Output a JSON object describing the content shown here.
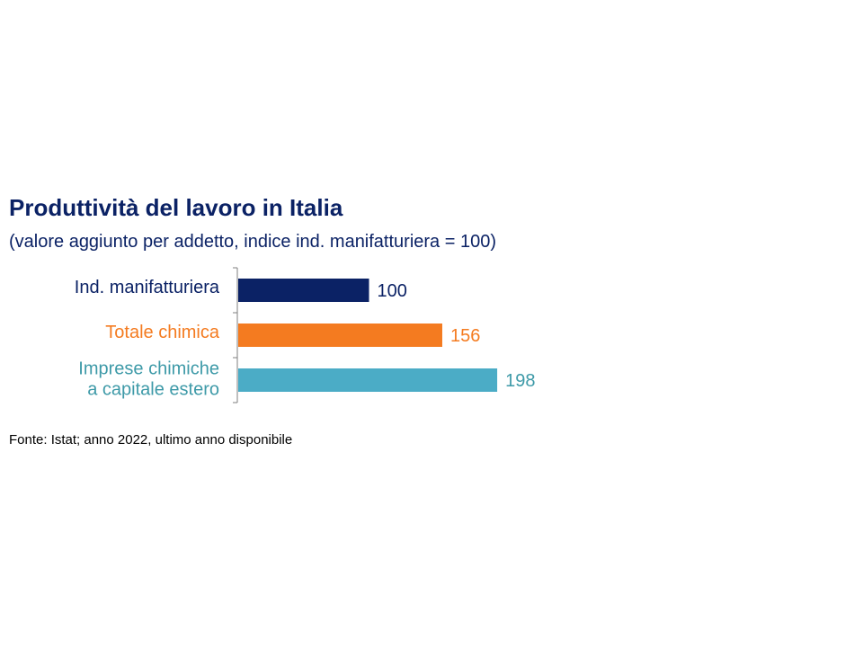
{
  "header": {
    "title": "Produttività del lavoro in Italia",
    "subtitle": "(valore aggiunto per addetto, indice ind. manifatturiera = 100)"
  },
  "source": "Fonte: Istat; anno 2022, ultimo anno disponibile",
  "chart_data": {
    "type": "bar",
    "orientation": "horizontal",
    "title": "Produttività del lavoro in Italia",
    "subtitle": "(valore aggiunto per addetto, indice ind. manifatturiera = 100)",
    "xlabel": "",
    "ylabel": "",
    "xlim": [
      0,
      250
    ],
    "grid": false,
    "categories": [
      {
        "lines": [
          "Ind. manifatturiera"
        ],
        "color": "#0b2265"
      },
      {
        "lines": [
          "Totale chimica"
        ],
        "color": "#f47b20"
      },
      {
        "lines": [
          "Imprese chimiche",
          "a capitale estero"
        ],
        "color": "#3e9aa8"
      }
    ],
    "values": [
      100,
      156,
      198
    ],
    "value_labels": [
      "100",
      "156",
      "198"
    ],
    "bar_colors": [
      "#0b2265",
      "#f47b20",
      "#4bacc6"
    ],
    "value_label_colors": [
      "#0b2265",
      "#f47b20",
      "#3e9aa8"
    ]
  }
}
